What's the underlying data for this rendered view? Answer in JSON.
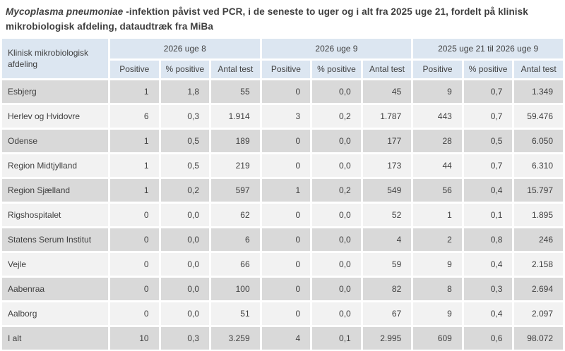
{
  "title": {
    "italic": "Mycoplasma pneumoniae",
    "rest": " -infektion påvist ved PCR, i de seneste to uger og i alt fra 2025 uge 21, fordelt på klinisk mikrobiologisk afdeling, dataudtræk fra MiBa"
  },
  "table": {
    "row_header": "Klinisk mikrobiologisk afdeling",
    "groups": [
      "2026 uge 8",
      "2026 uge 9",
      "2025 uge 21 til 2026 uge 9"
    ],
    "sub_columns": [
      "Positive",
      "% positive",
      "Antal test"
    ],
    "rows": [
      {
        "name": "Esbjerg",
        "values": [
          "1",
          "1,8",
          "55",
          "0",
          "0,0",
          "45",
          "9",
          "0,7",
          "1.349"
        ]
      },
      {
        "name": "Herlev og Hvidovre",
        "values": [
          "6",
          "0,3",
          "1.914",
          "3",
          "0,2",
          "1.787",
          "443",
          "0,7",
          "59.476"
        ]
      },
      {
        "name": "Odense",
        "values": [
          "1",
          "0,5",
          "189",
          "0",
          "0,0",
          "177",
          "28",
          "0,5",
          "6.050"
        ]
      },
      {
        "name": "Region Midtjylland",
        "values": [
          "1",
          "0,5",
          "219",
          "0",
          "0,0",
          "173",
          "44",
          "0,7",
          "6.310"
        ]
      },
      {
        "name": "Region Sjælland",
        "values": [
          "1",
          "0,2",
          "597",
          "1",
          "0,2",
          "549",
          "56",
          "0,4",
          "15.797"
        ]
      },
      {
        "name": "Rigshospitalet",
        "values": [
          "0",
          "0,0",
          "62",
          "0",
          "0,0",
          "52",
          "1",
          "0,1",
          "1.895"
        ]
      },
      {
        "name": "Statens Serum Institut",
        "values": [
          "0",
          "0,0",
          "6",
          "0",
          "0,0",
          "4",
          "2",
          "0,8",
          "246"
        ]
      },
      {
        "name": "Vejle",
        "values": [
          "0",
          "0,0",
          "66",
          "0",
          "0,0",
          "59",
          "9",
          "0,4",
          "2.158"
        ]
      },
      {
        "name": "Aabenraa",
        "values": [
          "0",
          "0,0",
          "100",
          "0",
          "0,0",
          "82",
          "8",
          "0,3",
          "2.694"
        ]
      },
      {
        "name": "Aalborg",
        "values": [
          "0",
          "0,0",
          "51",
          "0",
          "0,0",
          "67",
          "9",
          "0,4",
          "2.097"
        ]
      },
      {
        "name": "I alt",
        "values": [
          "10",
          "0,3",
          "3.259",
          "4",
          "0,1",
          "2.995",
          "609",
          "0,6",
          "98.072"
        ]
      }
    ]
  },
  "colors": {
    "header_bg": "#dce6f1",
    "row_dark_bg": "#d9d9d9",
    "row_light_bg": "#f2f2f2",
    "text": "#404040",
    "title_text": "#3f3f3f",
    "background": "#ffffff"
  }
}
